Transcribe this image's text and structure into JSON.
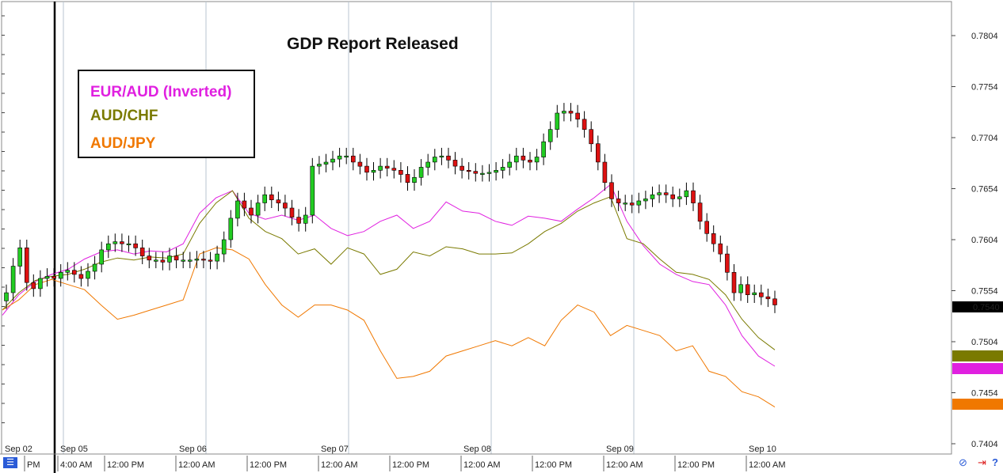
{
  "annotation": "GDP Report Released",
  "legend": [
    {
      "label": "EUR/AUD (Inverted)",
      "color": "#e020e0"
    },
    {
      "label": "AUD/CHF",
      "color": "#7a7a00"
    },
    {
      "label": "AUD/JPY",
      "color": "#f07800"
    }
  ],
  "current_price": "0.7540",
  "chart_data": {
    "type": "line",
    "ylim": [
      0.7384,
      0.7824
    ],
    "yticks": [
      "0.7804",
      "0.7754",
      "0.7704",
      "0.7654",
      "0.7604",
      "0.7554",
      "0.7504",
      "0.7454",
      "0.7404"
    ],
    "date_labels": [
      "Sep 02",
      "Sep 05",
      "Sep 06",
      "Sep 07",
      "Sep 08",
      "Sep 09",
      "Sep 10"
    ],
    "time_labels": [
      "PM",
      "4:00 AM",
      "12:00 PM",
      "12:00 AM",
      "12:00 PM",
      "12:00 AM",
      "12:00 PM",
      "12:00 AM",
      "12:00 PM",
      "12:00 AM",
      "12:00 PM",
      "12:00 AM"
    ],
    "candles_close": [
      0.7552,
      0.7578,
      0.7596,
      0.7562,
      0.7556,
      0.7566,
      0.7568,
      0.7566,
      0.7572,
      0.7574,
      0.757,
      0.7566,
      0.7573,
      0.758,
      0.7594,
      0.76,
      0.7602,
      0.76,
      0.76,
      0.7596,
      0.7588,
      0.7584,
      0.7584,
      0.7582,
      0.7588,
      0.7584,
      0.7584,
      0.7584,
      0.7585,
      0.7584,
      0.7583,
      0.759,
      0.7604,
      0.7625,
      0.7642,
      0.7635,
      0.7628,
      0.764,
      0.7648,
      0.7643,
      0.764,
      0.7635,
      0.7626,
      0.762,
      0.7628,
      0.7676,
      0.7678,
      0.768,
      0.7683,
      0.7686,
      0.7686,
      0.768,
      0.7676,
      0.767,
      0.7672,
      0.7676,
      0.7674,
      0.7672,
      0.7668,
      0.766,
      0.7665,
      0.7675,
      0.768,
      0.7685,
      0.7686,
      0.7682,
      0.7676,
      0.7672,
      0.7671,
      0.7669,
      0.7669,
      0.767,
      0.7672,
      0.7675,
      0.768,
      0.7686,
      0.7682,
      0.768,
      0.7685,
      0.77,
      0.7712,
      0.7728,
      0.773,
      0.7728,
      0.7722,
      0.7712,
      0.7698,
      0.768,
      0.766,
      0.7644,
      0.764,
      0.764,
      0.7638,
      0.7642,
      0.7644,
      0.7648,
      0.765,
      0.7648,
      0.7644,
      0.7646,
      0.7652,
      0.764,
      0.7622,
      0.761,
      0.76,
      0.759,
      0.7572,
      0.7552,
      0.756,
      0.755,
      0.7552,
      0.7548,
      0.7546,
      0.754
    ],
    "series": [
      {
        "name": "EUR/AUD (Inverted)",
        "values": [
          0.753,
          0.755,
          0.7563,
          0.757,
          0.7575,
          0.7585,
          0.7592,
          0.7594,
          0.759,
          0.7593,
          0.7592,
          0.76,
          0.763,
          0.7645,
          0.7652,
          0.763,
          0.7624,
          0.7628,
          0.7623,
          0.7628,
          0.7615,
          0.7608,
          0.7612,
          0.7622,
          0.7628,
          0.7615,
          0.7622,
          0.7641,
          0.7632,
          0.763,
          0.7622,
          0.7618,
          0.7627,
          0.7625,
          0.7622,
          0.7634,
          0.7645,
          0.7658,
          0.7622,
          0.7598,
          0.758,
          0.757,
          0.7563,
          0.756,
          0.754,
          0.751,
          0.749,
          0.748
        ]
      },
      {
        "name": "AUD/CHF",
        "values": [
          0.7535,
          0.7552,
          0.7564,
          0.7568,
          0.757,
          0.7575,
          0.7582,
          0.7586,
          0.7584,
          0.7587,
          0.7586,
          0.759,
          0.762,
          0.764,
          0.7652,
          0.7625,
          0.7612,
          0.7605,
          0.759,
          0.7595,
          0.758,
          0.7596,
          0.759,
          0.757,
          0.7575,
          0.7592,
          0.7588,
          0.7597,
          0.7595,
          0.759,
          0.759,
          0.7591,
          0.76,
          0.7612,
          0.762,
          0.7632,
          0.764,
          0.7646,
          0.7605,
          0.76,
          0.7585,
          0.7572,
          0.757,
          0.7565,
          0.755,
          0.7526,
          0.7508,
          0.7496
        ]
      },
      {
        "name": "AUD/JPY",
        "values": [
          0.7535,
          0.7545,
          0.756,
          0.7565,
          0.756,
          0.7555,
          0.754,
          0.7526,
          0.753,
          0.7535,
          0.754,
          0.7545,
          0.759,
          0.7596,
          0.7594,
          0.7585,
          0.756,
          0.754,
          0.7528,
          0.754,
          0.754,
          0.7535,
          0.7525,
          0.7495,
          0.7468,
          0.747,
          0.7475,
          0.749,
          0.7495,
          0.75,
          0.7505,
          0.75,
          0.7508,
          0.75,
          0.7525,
          0.754,
          0.7533,
          0.751,
          0.752,
          0.7515,
          0.751,
          0.7495,
          0.75,
          0.7475,
          0.747,
          0.7455,
          0.745,
          0.744
        ]
      }
    ]
  }
}
